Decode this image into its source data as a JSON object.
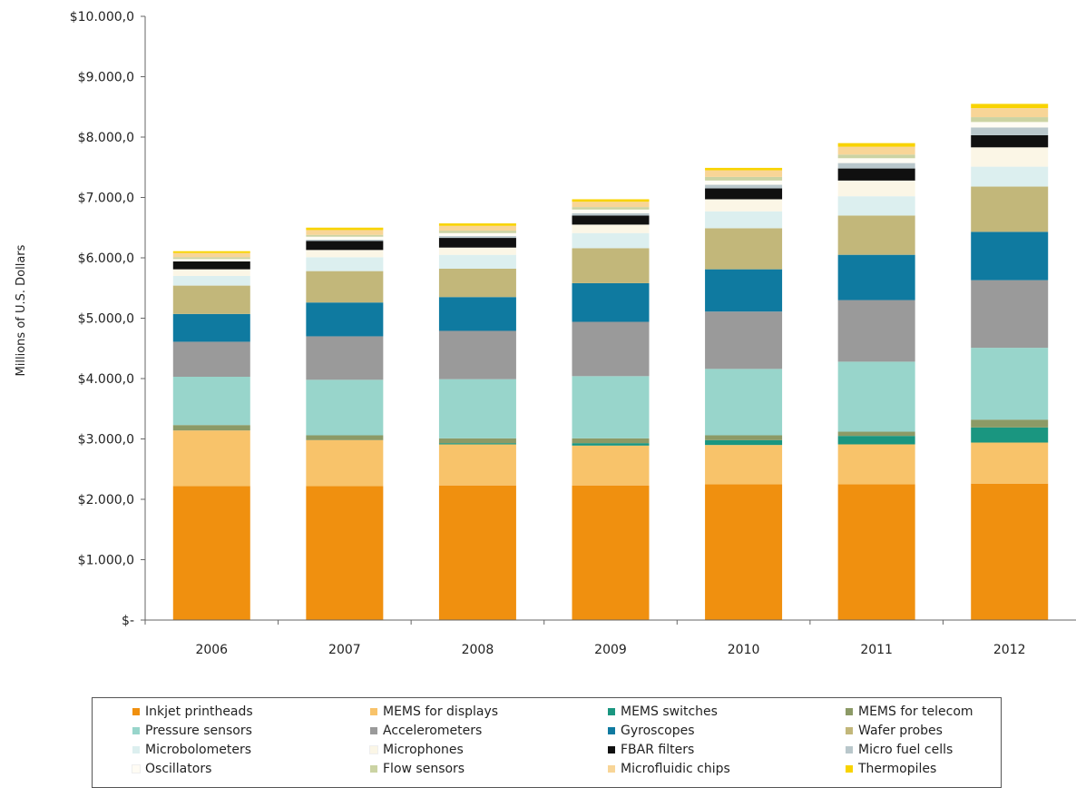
{
  "chart_data": {
    "type": "bar",
    "stacked": true,
    "title": "",
    "xlabel": "",
    "ylabel": "Millions of U.S. Dollars",
    "ylim": [
      0,
      10000
    ],
    "yticks": [
      0,
      1000,
      2000,
      3000,
      4000,
      5000,
      6000,
      7000,
      8000,
      9000,
      10000
    ],
    "ytick_labels": [
      "$-",
      "$1.000,0",
      "$2.000,0",
      "$3.000,0",
      "$4.000,0",
      "$5.000,0",
      "$6.000,0",
      "$7.000,0",
      "$8.000,0",
      "$9.000,0",
      "$10.000,0"
    ],
    "categories": [
      "2006",
      "2007",
      "2008",
      "2009",
      "2010",
      "2011",
      "2012"
    ],
    "grid": false,
    "legend_position": "bottom",
    "series": [
      {
        "name": "Inkjet printheads",
        "color": "#f0900f",
        "values": [
          2220,
          2220,
          2230,
          2230,
          2250,
          2250,
          2260
        ]
      },
      {
        "name": "MEMS for displays",
        "color": "#f8c36a",
        "values": [
          920,
          760,
          680,
          660,
          650,
          660,
          680
        ]
      },
      {
        "name": "MEMS switches",
        "color": "#1a9680",
        "values": [
          0,
          0,
          20,
          40,
          80,
          140,
          250
        ]
      },
      {
        "name": "MEMS for telecom",
        "color": "#8c9a66",
        "values": [
          90,
          80,
          80,
          80,
          80,
          70,
          130
        ]
      },
      {
        "name": "Pressure sensors",
        "color": "#98d5cb",
        "values": [
          800,
          920,
          980,
          1030,
          1100,
          1160,
          1190
        ]
      },
      {
        "name": "Accelerometers",
        "color": "#9a9a9a",
        "values": [
          580,
          720,
          800,
          900,
          950,
          1020,
          1120
        ]
      },
      {
        "name": "Gyroscopes",
        "color": "#0f7aa0",
        "values": [
          460,
          560,
          560,
          640,
          700,
          750,
          800
        ]
      },
      {
        "name": "Wafer probes",
        "color": "#c2b77a",
        "values": [
          470,
          520,
          470,
          580,
          680,
          650,
          750
        ]
      },
      {
        "name": "Microbolometers",
        "color": "#dcefef",
        "values": [
          160,
          230,
          230,
          250,
          280,
          320,
          330
        ]
      },
      {
        "name": "Microphones",
        "color": "#fbf6e6",
        "values": [
          110,
          120,
          120,
          140,
          200,
          260,
          320
        ]
      },
      {
        "name": "FBAR filters",
        "color": "#101010",
        "values": [
          130,
          150,
          160,
          150,
          180,
          200,
          200
        ]
      },
      {
        "name": "Micro fuel cells",
        "color": "#b9c7cb",
        "values": [
          0,
          20,
          30,
          40,
          60,
          90,
          130
        ]
      },
      {
        "name": "Oscillators",
        "color": "#fffcf4",
        "values": [
          40,
          50,
          50,
          60,
          70,
          80,
          90
        ]
      },
      {
        "name": "Flow sensors",
        "color": "#cbd3a3",
        "values": [
          30,
          30,
          40,
          40,
          60,
          60,
          80
        ]
      },
      {
        "name": "Microfluidic chips",
        "color": "#f8d597",
        "values": [
          70,
          80,
          80,
          90,
          110,
          130,
          150
        ]
      },
      {
        "name": "Thermopiles",
        "color": "#f8d300",
        "values": [
          30,
          40,
          40,
          40,
          40,
          60,
          70
        ]
      }
    ]
  }
}
